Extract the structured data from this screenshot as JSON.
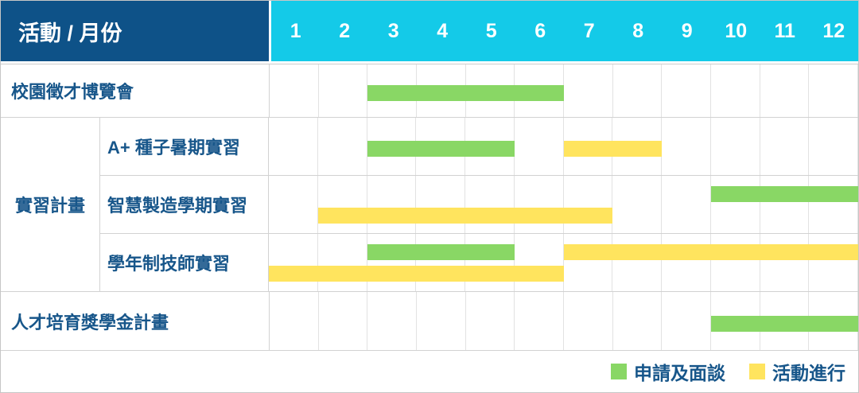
{
  "gantt": {
    "corner_label": "活動 / 月份",
    "months": [
      "1",
      "2",
      "3",
      "4",
      "5",
      "6",
      "7",
      "8",
      "9",
      "10",
      "11",
      "12"
    ],
    "sections": [
      {
        "kind": "row",
        "label": "校園徵才博覽會",
        "bars": [
          {
            "legend": "apply",
            "start": 3,
            "end": 6,
            "lane": "center"
          }
        ]
      },
      {
        "kind": "group",
        "label": "實習計畫",
        "rows": [
          {
            "label": "A+ 種子暑期實習",
            "bars": [
              {
                "legend": "apply",
                "start": 3,
                "end": 5,
                "lane": "center"
              },
              {
                "legend": "ongoing",
                "start": 7,
                "end": 8,
                "lane": "center"
              }
            ]
          },
          {
            "label": "智慧製造學期實習",
            "bars": [
              {
                "legend": "apply",
                "start": 10,
                "end": 12,
                "lane": "top"
              },
              {
                "legend": "ongoing",
                "start": 2,
                "end": 7,
                "lane": "bottom"
              }
            ]
          },
          {
            "label": "學年制技師實習",
            "bars": [
              {
                "legend": "apply",
                "start": 3,
                "end": 5,
                "lane": "top"
              },
              {
                "legend": "ongoing",
                "start": 7,
                "end": 12,
                "lane": "top"
              },
              {
                "legend": "ongoing",
                "start": 1,
                "end": 6,
                "lane": "bottom"
              }
            ]
          }
        ]
      },
      {
        "kind": "row",
        "label": "人才培育獎學金計畫",
        "bars": [
          {
            "legend": "apply",
            "start": 10,
            "end": 12,
            "lane": "center"
          }
        ]
      }
    ],
    "legend": [
      {
        "key": "apply",
        "label": "申請及面談"
      },
      {
        "key": "ongoing",
        "label": "活動進行"
      }
    ]
  },
  "colors": {
    "header_bg": "#0e5288",
    "month_strip_bg": "#14cae8",
    "apply": "#89d765",
    "ongoing": "#ffe45e",
    "label_text": "#17568a",
    "grid_line": "#e2e2e2"
  },
  "chart_data": {
    "type": "gantt",
    "title": "活動 / 月份",
    "x_unit": "month",
    "x_ticks": [
      "1",
      "2",
      "3",
      "4",
      "5",
      "6",
      "7",
      "8",
      "9",
      "10",
      "11",
      "12"
    ],
    "legend": [
      {
        "name": "申請及面談",
        "color": "#89d765"
      },
      {
        "name": "活動進行",
        "color": "#ffe45e"
      }
    ],
    "tasks": [
      {
        "group": null,
        "name": "校園徵才博覽會",
        "phases": [
          {
            "type": "申請及面談",
            "start_month": 3,
            "end_month": 6
          }
        ]
      },
      {
        "group": "實習計畫",
        "name": "A+ 種子暑期實習",
        "phases": [
          {
            "type": "申請及面談",
            "start_month": 3,
            "end_month": 5
          },
          {
            "type": "活動進行",
            "start_month": 7,
            "end_month": 8
          }
        ]
      },
      {
        "group": "實習計畫",
        "name": "智慧製造學期實習",
        "phases": [
          {
            "type": "活動進行",
            "start_month": 2,
            "end_month": 7
          },
          {
            "type": "申請及面談",
            "start_month": 10,
            "end_month": 12
          }
        ]
      },
      {
        "group": "實習計畫",
        "name": "學年制技師實習",
        "phases": [
          {
            "type": "申請及面談",
            "start_month": 3,
            "end_month": 5
          },
          {
            "type": "活動進行",
            "start_month": 7,
            "end_month": 12
          },
          {
            "type": "活動進行",
            "start_month": 1,
            "end_month": 6
          }
        ]
      },
      {
        "group": null,
        "name": "人才培育獎學金計畫",
        "phases": [
          {
            "type": "申請及面談",
            "start_month": 10,
            "end_month": 12
          }
        ]
      }
    ]
  }
}
